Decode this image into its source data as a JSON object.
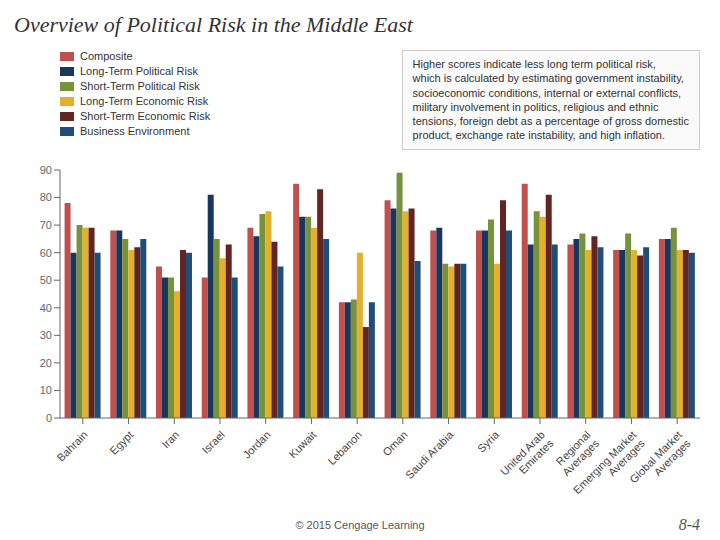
{
  "chart_data": {
    "type": "bar",
    "title": "Overview of Political Risk in the Middle East",
    "categories": [
      "Bahrain",
      "Egypt",
      "Iran",
      "Israel",
      "Jordan",
      "Kuwait",
      "Lebanon",
      "Oman",
      "Saudi Arabia",
      "Syria",
      "United Arab\nEmirates",
      "Regional\nAverages",
      "Emerging Market\nAverages",
      "Global Market\nAverages"
    ],
    "series": [
      {
        "name": "Composite",
        "color": "#C0504D",
        "values": [
          78,
          68,
          55,
          51,
          69,
          85,
          42,
          79,
          68,
          68,
          85,
          63,
          61,
          65
        ]
      },
      {
        "name": "Long-Term Political Risk",
        "color": "#17375E",
        "values": [
          60,
          68,
          51,
          81,
          66,
          73,
          42,
          76,
          69,
          68,
          63,
          65,
          61,
          65
        ]
      },
      {
        "name": "Short-Term Political Risk",
        "color": "#76933C",
        "values": [
          70,
          65,
          51,
          65,
          74,
          73,
          43,
          89,
          56,
          72,
          75,
          67,
          67,
          69
        ]
      },
      {
        "name": "Long-Term Economic Risk",
        "color": "#E6AF2A",
        "values": [
          69,
          61,
          46,
          58,
          75,
          69,
          60,
          75,
          55,
          56,
          73,
          61,
          61,
          61
        ]
      },
      {
        "name": "Short-Term Economic Risk",
        "color": "#632523",
        "values": [
          69,
          62,
          61,
          63,
          64,
          83,
          33,
          76,
          56,
          79,
          81,
          66,
          59,
          61
        ]
      },
      {
        "name": "Business Environment",
        "color": "#1F4E79",
        "values": [
          60,
          65,
          60,
          51,
          55,
          65,
          42,
          57,
          56,
          68,
          63,
          62,
          62,
          60
        ]
      }
    ],
    "ylim": [
      0,
      90
    ],
    "yticks": [
      0,
      10,
      20,
      30,
      40,
      50,
      60,
      70,
      80,
      90
    ],
    "grid": false,
    "legend": "upper left",
    "annotations": [
      "Higher scores indicate less long term political risk,\nwhich is calculated by estimating government instability,\nsocioeconomic conditions, internal or external conflicts,\nmilitary involvement in politics, religious and ethnic\ntensions, foreign debt as a percentage of gross domestic\nproduct, exchange rate instability, and high inflation.",
      "© 2015 Cengage Learning",
      "8-4"
    ]
  }
}
